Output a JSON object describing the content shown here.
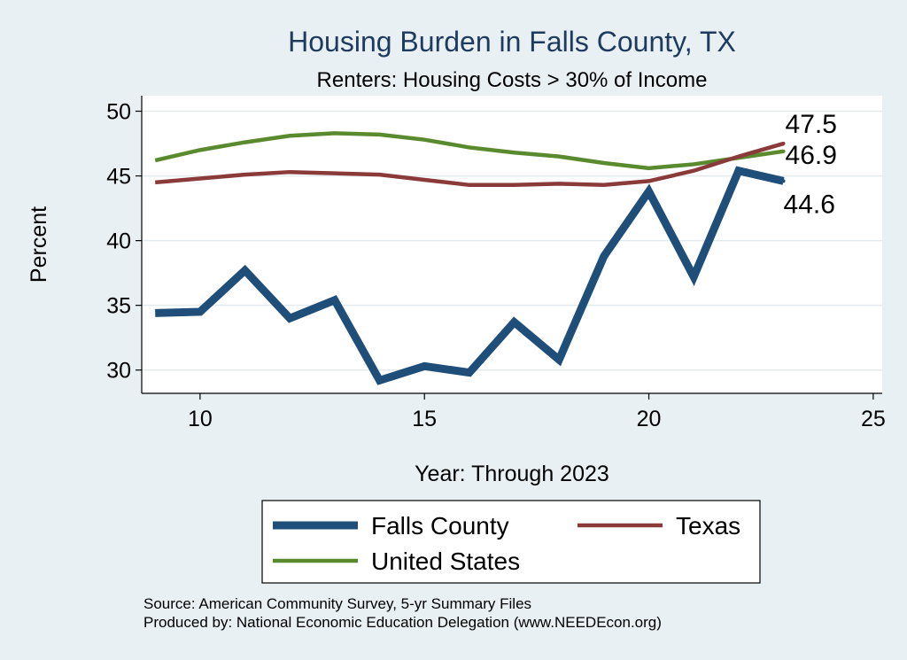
{
  "chart_data": {
    "type": "line",
    "title": "Housing Burden in Falls County, TX",
    "subtitle": "Renters: Housing Costs > 30% of Income",
    "xlabel": "Year: Through 2023",
    "ylabel": "Percent",
    "xlim": [
      8.7,
      25.2
    ],
    "ylim": [
      28.2,
      51.2
    ],
    "xticks": [
      10,
      15,
      20,
      25
    ],
    "yticks": [
      30,
      35,
      40,
      45,
      50
    ],
    "grid": true,
    "legend_position": "bottom",
    "x": [
      9,
      10,
      11,
      12,
      13,
      14,
      15,
      16,
      17,
      18,
      19,
      20,
      21,
      22,
      23
    ],
    "series": [
      {
        "name": "Falls County",
        "color": "#1f4e79",
        "values": [
          34.4,
          34.5,
          37.7,
          34.0,
          35.4,
          29.2,
          30.3,
          29.8,
          33.7,
          30.8,
          38.8,
          43.8,
          37.2,
          45.4,
          44.6
        ],
        "end_label": "44.6"
      },
      {
        "name": "Texas",
        "color": "#8b3a3a",
        "values": [
          44.5,
          44.8,
          45.1,
          45.3,
          45.2,
          45.1,
          44.7,
          44.3,
          44.3,
          44.4,
          44.3,
          44.6,
          45.4,
          46.5,
          47.5
        ],
        "end_label": "47.5"
      },
      {
        "name": "United States",
        "color": "#5a8a2e",
        "values": [
          46.2,
          47.0,
          47.6,
          48.1,
          48.3,
          48.2,
          47.8,
          47.2,
          46.8,
          46.5,
          46.0,
          45.6,
          45.9,
          46.4,
          46.9
        ],
        "end_label": "46.9"
      }
    ],
    "source": "Source: American Community Survey, 5-yr Summary Files",
    "produced_by": "Produced by: National Economic Education Delegation (www.NEEDEcon.org)"
  }
}
